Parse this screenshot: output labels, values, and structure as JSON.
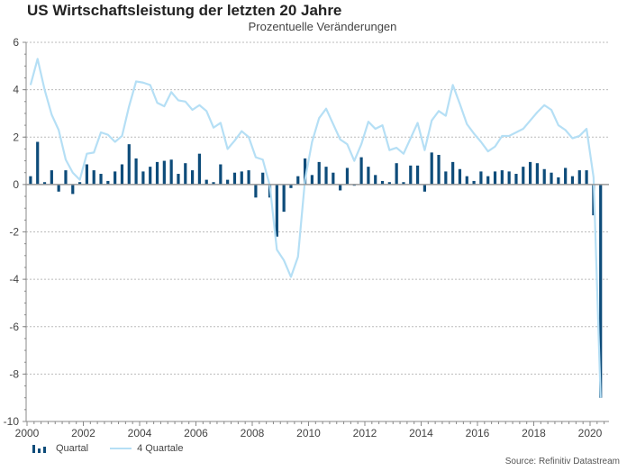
{
  "header": {
    "title": "US Wirtschaftsleistung der letzten 20 Jahre",
    "subtitle": "Prozentuelle Veränderungen"
  },
  "legend": {
    "quarterly": "Quartal",
    "annual": "4 Quartale"
  },
  "source": "Source: Refinitiv Datastream",
  "colors": {
    "bars": "#0e4c7a",
    "line": "#b5dff5",
    "grid": "#bbbbbb",
    "axis": "#888888"
  },
  "chart_data": {
    "type": "bar",
    "title": "US Wirtschaftsleistung der letzten 20 Jahre",
    "subtitle": "Prozentuelle Veränderungen",
    "xlabel": "",
    "ylabel": "",
    "ylim": [
      -10,
      6
    ],
    "yticks": [
      -10,
      -8,
      -6,
      -4,
      -2,
      0,
      2,
      4,
      6
    ],
    "xlim": [
      2000,
      2020.75
    ],
    "xticks": [
      2000,
      2002,
      2004,
      2006,
      2008,
      2010,
      2012,
      2014,
      2016,
      2018,
      2020
    ],
    "grid": "horizontal dotted",
    "legend_position": "bottom-left",
    "x_start": "2000Q1",
    "x_end": "2020Q2",
    "series": [
      {
        "name": "Quartal",
        "type": "bar",
        "values": [
          0.35,
          1.8,
          0.1,
          0.6,
          -0.3,
          0.6,
          -0.4,
          0.1,
          0.85,
          0.6,
          0.45,
          0.15,
          0.55,
          0.85,
          1.7,
          1.1,
          0.55,
          0.75,
          0.95,
          1.0,
          1.05,
          0.45,
          0.9,
          0.6,
          1.3,
          0.2,
          0.1,
          0.85,
          0.2,
          0.5,
          0.55,
          0.6,
          -0.55,
          0.5,
          -0.55,
          -2.2,
          -1.15,
          -0.15,
          0.35,
          1.1,
          0.4,
          0.95,
          0.75,
          0.5,
          -0.25,
          0.7,
          -0.05,
          1.15,
          0.75,
          0.4,
          0.15,
          0.1,
          0.9,
          0.1,
          0.8,
          0.8,
          -0.3,
          1.35,
          1.25,
          0.55,
          0.95,
          0.65,
          0.35,
          0.15,
          0.55,
          0.35,
          0.55,
          0.6,
          0.55,
          0.45,
          0.75,
          0.95,
          0.9,
          0.65,
          0.5,
          0.3,
          0.7,
          0.35,
          0.6,
          0.6,
          -1.3,
          -9.0
        ]
      },
      {
        "name": "4 Quartale",
        "type": "line",
        "values": [
          4.2,
          5.3,
          4.0,
          2.95,
          2.3,
          1.05,
          0.5,
          0.2,
          1.3,
          1.35,
          2.2,
          2.1,
          1.8,
          2.05,
          3.3,
          4.35,
          4.3,
          4.2,
          3.45,
          3.3,
          3.9,
          3.55,
          3.5,
          3.15,
          3.35,
          3.1,
          2.4,
          2.6,
          1.5,
          1.85,
          2.25,
          2.0,
          1.15,
          1.05,
          -0.05,
          -2.75,
          -3.2,
          -3.9,
          -3.05,
          0.2,
          1.8,
          2.8,
          3.2,
          2.55,
          1.9,
          1.7,
          1.0,
          1.7,
          2.65,
          2.35,
          2.5,
          1.45,
          1.55,
          1.3,
          1.95,
          2.6,
          1.45,
          2.7,
          3.1,
          2.9,
          4.2,
          3.4,
          2.55,
          2.15,
          1.8,
          1.4,
          1.6,
          2.05,
          2.05,
          2.2,
          2.35,
          2.7,
          3.05,
          3.35,
          3.15,
          2.5,
          2.3,
          1.95,
          2.05,
          2.35,
          0.3,
          -9.0
        ]
      }
    ]
  }
}
